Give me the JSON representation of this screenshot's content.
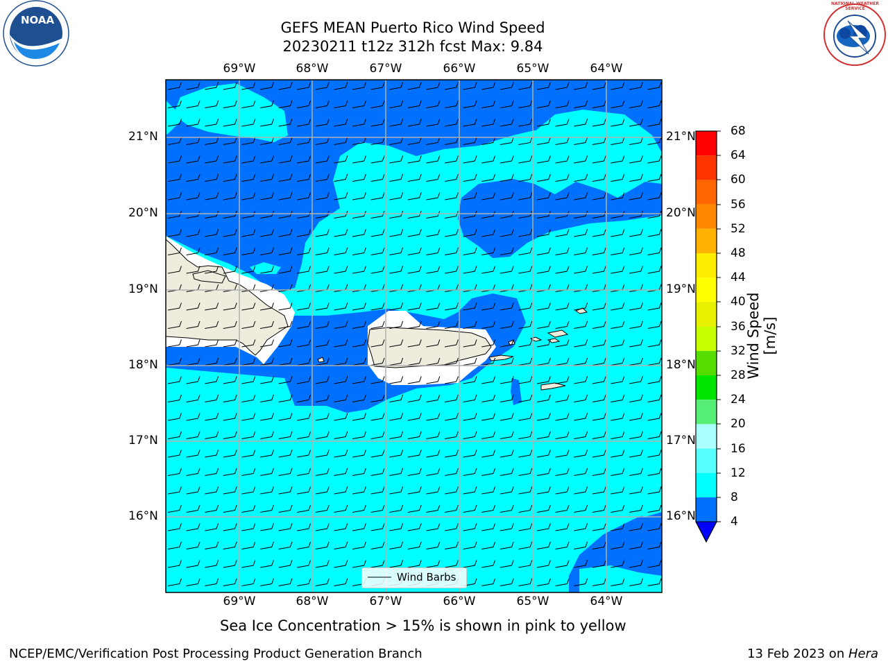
{
  "title": {
    "line1": "GEFS MEAN Puerto Rico Wind Speed",
    "line2": "20230211 t12z 312h fcst   Max: 9.84"
  },
  "map": {
    "lon_labels": [
      "69°W",
      "68°W",
      "67°W",
      "66°W",
      "65°W",
      "64°W"
    ],
    "lat_labels": [
      "21°N",
      "20°N",
      "19°N",
      "18°N",
      "17°N",
      "16°N"
    ],
    "legend_label": "Wind Barbs"
  },
  "colorbar": {
    "label": "Wind Speed [m/s]",
    "ticks": [
      "68",
      "64",
      "60",
      "56",
      "52",
      "48",
      "44",
      "40",
      "36",
      "32",
      "28",
      "24",
      "20",
      "16",
      "12",
      "8",
      "4"
    ],
    "colors": {
      "4-8": "#0070ff",
      "8-12": "#00ffff",
      "12-16": "#40ffff",
      "16-20": "#a0ffff",
      "20-24": "#50f08a",
      "24-28": "#00e400",
      "28-32": "#40d800",
      "32-36": "#c0ff00",
      "36-40": "#e0f000",
      "40-44": "#f0ff00",
      "44-48": "#ffff00",
      "48-52": "#ffbb00",
      "52-56": "#ff9900",
      "56-60": "#ff7700",
      "60-64": "#ff4400",
      "64-68": "#ff0000",
      "under": "#0000ff"
    }
  },
  "note": "Sea Ice Concentration > 15% is shown in pink to yellow",
  "footer": {
    "left": "NCEP/EMC/Verification Post Processing Product Generation Branch",
    "date": "13 Feb 2023 on ",
    "machine": "Hera"
  },
  "logos": {
    "noaa_text": "NOAA",
    "nws_text": "NATIONAL WEATHER SERVICE"
  }
}
